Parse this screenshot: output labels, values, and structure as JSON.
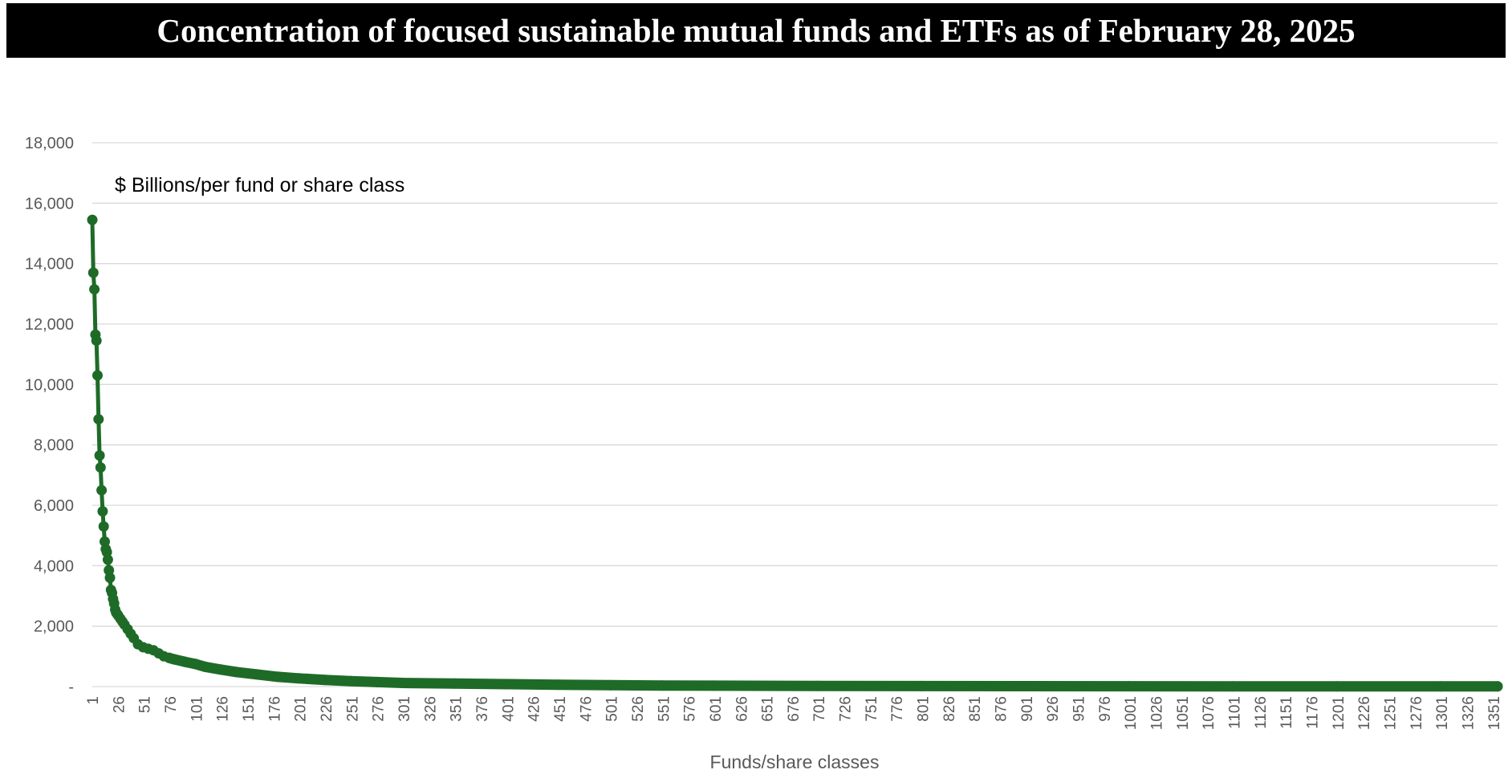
{
  "title": "Concentration of focused sustainable mutual funds and ETFs as of February 28, 2025",
  "chart_data": {
    "type": "line",
    "title": "Concentration of focused sustainable mutual funds and ETFs as of February 28, 2025",
    "annotation": "$ Billions/per fund or share class",
    "xlabel": "Funds/share classes",
    "ylabel": "",
    "ylim": [
      0,
      18000
    ],
    "xlim": [
      1,
      1355
    ],
    "grid": "horizontal",
    "y_ticks": [
      "-",
      "2,000",
      "4,000",
      "6,000",
      "8,000",
      "10,000",
      "12,000",
      "14,000",
      "16,000",
      "18,000"
    ],
    "x_ticks": [
      "1",
      "26",
      "51",
      "76",
      "101",
      "126",
      "151",
      "176",
      "201",
      "226",
      "251",
      "276",
      "301",
      "326",
      "351",
      "376",
      "401",
      "426",
      "451",
      "476",
      "501",
      "526",
      "551",
      "576",
      "601",
      "626",
      "651",
      "676",
      "701",
      "726",
      "751",
      "776",
      "801",
      "826",
      "851",
      "876",
      "901",
      "926",
      "951",
      "976",
      "1001",
      "1026",
      "1051",
      "1076",
      "1101",
      "1126",
      "1151",
      "1176",
      "1201",
      "1226",
      "1251",
      "1276",
      "1301",
      "1326",
      "1351"
    ],
    "series": [
      {
        "color": "#1e6b28",
        "marker": "circle",
        "x": [
          1,
          2,
          3,
          4,
          5,
          6,
          7,
          8,
          9,
          10,
          11,
          12,
          13,
          14,
          15,
          16,
          17,
          18,
          19,
          20,
          21,
          22,
          23,
          24,
          25,
          26,
          28,
          30,
          32,
          35,
          38,
          41,
          45,
          50,
          55,
          60,
          65,
          70,
          75,
          80,
          90,
          100,
          110,
          125,
          140,
          160,
          180,
          200,
          225,
          250,
          275,
          300,
          350,
          400,
          450,
          500,
          550,
          600,
          700,
          800,
          900,
          1000,
          1100,
          1200,
          1300,
          1355
        ],
        "y": [
          15450,
          13700,
          13150,
          11650,
          11450,
          10300,
          8850,
          7650,
          7250,
          6500,
          5800,
          5300,
          4800,
          4550,
          4450,
          4200,
          3850,
          3600,
          3200,
          3100,
          2900,
          2750,
          2550,
          2450,
          2400,
          2350,
          2250,
          2150,
          2050,
          1900,
          1750,
          1600,
          1400,
          1300,
          1250,
          1200,
          1100,
          1000,
          950,
          900,
          820,
          750,
          650,
          560,
          480,
          400,
          320,
          270,
          220,
          180,
          150,
          120,
          100,
          80,
          60,
          45,
          35,
          28,
          20,
          15,
          12,
          10,
          8,
          6,
          5,
          4
        ]
      }
    ]
  }
}
